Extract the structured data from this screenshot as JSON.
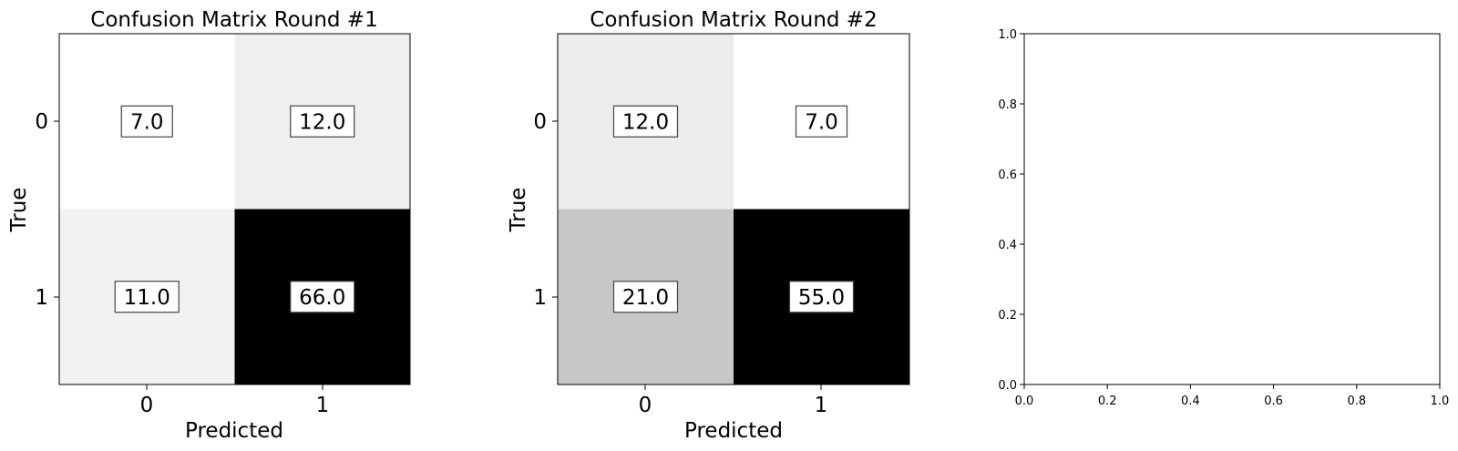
{
  "chart_data": [
    {
      "type": "heatmap",
      "title": "Confusion Matrix Round #1",
      "xlabel": "Predicted",
      "ylabel": "True",
      "x_categories": [
        "0",
        "1"
      ],
      "y_categories": [
        "0",
        "1"
      ],
      "values": [
        [
          7.0,
          12.0
        ],
        [
          11.0,
          66.0
        ]
      ],
      "labels": [
        [
          "7.0",
          "12.0"
        ],
        [
          "11.0",
          "66.0"
        ]
      ],
      "colormap": "greys",
      "grid": false
    },
    {
      "type": "heatmap",
      "title": "Confusion Matrix Round #2",
      "xlabel": "Predicted",
      "ylabel": "True",
      "x_categories": [
        "0",
        "1"
      ],
      "y_categories": [
        "0",
        "1"
      ],
      "values": [
        [
          12.0,
          7.0
        ],
        [
          21.0,
          55.0
        ]
      ],
      "labels": [
        [
          "12.0",
          "7.0"
        ],
        [
          "21.0",
          "55.0"
        ]
      ],
      "colormap": "greys",
      "grid": false
    },
    {
      "type": "scatter",
      "title": "",
      "xlabel": "",
      "ylabel": "",
      "xlim": [
        0.0,
        1.0
      ],
      "ylim": [
        0.0,
        1.0
      ],
      "x_ticks": [
        "0.0",
        "0.2",
        "0.4",
        "0.6",
        "0.8",
        "1.0"
      ],
      "y_ticks": [
        "0.0",
        "0.2",
        "0.4",
        "0.6",
        "0.8",
        "1.0"
      ],
      "series": [],
      "grid": false
    }
  ]
}
